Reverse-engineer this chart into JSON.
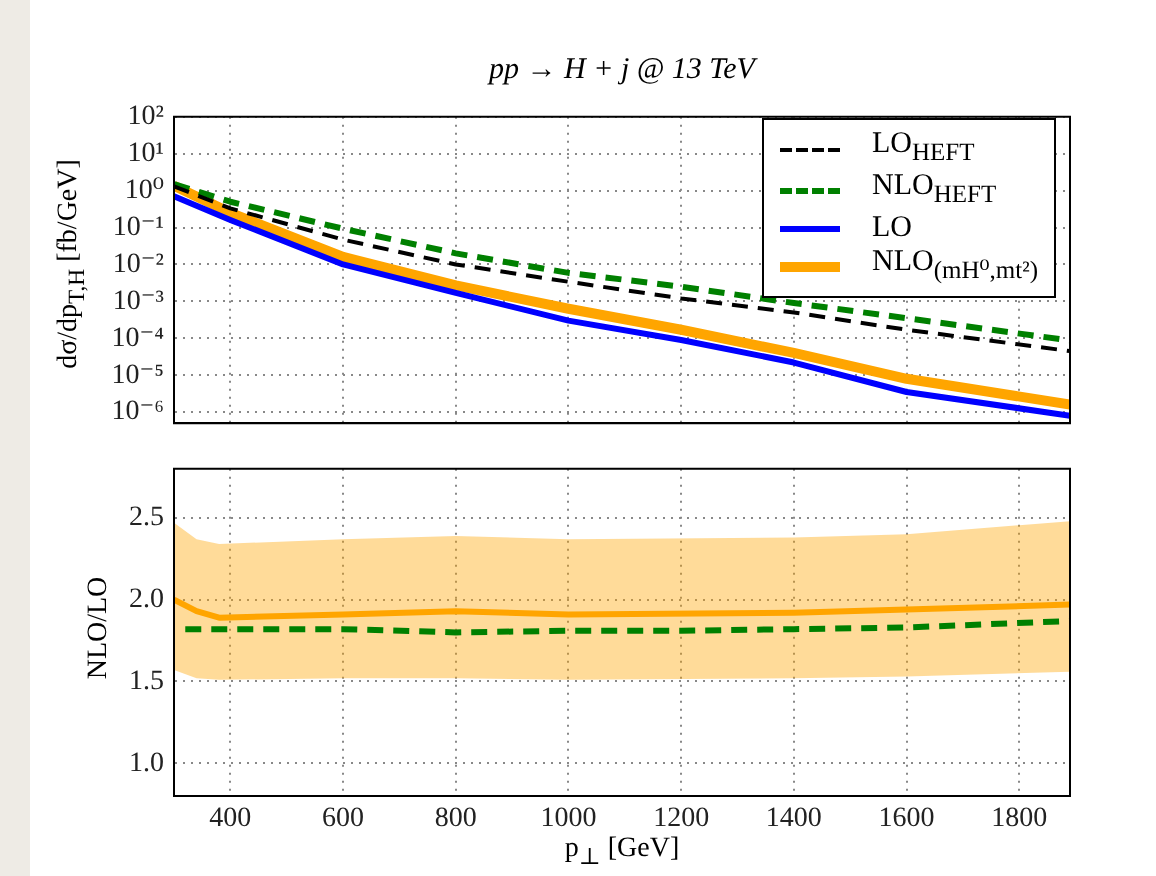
{
  "chart_data": [
    {
      "type": "line",
      "title": "pp → H + j @ 13 TeV",
      "ylabel": "dσ/dp$_{T,H}$ [fb/GeV]",
      "x": [
        300,
        400,
        600,
        800,
        1000,
        1200,
        1400,
        1600,
        1890
      ],
      "series": [
        {
          "name": "LO$_{HEFT}$",
          "color": "#000000",
          "line_style": "dashed",
          "values": [
            1.3,
            0.33,
            0.047,
            0.01,
            0.0034,
            0.0012,
            0.0005,
            0.00017,
            4.5e-05
          ]
        },
        {
          "name": "NLO$_{HEFT}$",
          "color": "#008000",
          "line_style": "dashed",
          "values": [
            1.5,
            0.5,
            0.093,
            0.02,
            0.0059,
            0.0025,
            0.0009,
            0.00035,
            8.7e-05
          ]
        },
        {
          "name": "LO",
          "color": "#0000ff",
          "line_style": "solid",
          "values": [
            0.7,
            0.16,
            0.01,
            0.0017,
            0.0003,
            9e-05,
            2.2e-05,
            3.5e-06,
            8e-07
          ]
        },
        {
          "name": "NLO$_{(mH⁰,mt²)}$",
          "color": "#ffa500",
          "line_style": "solid",
          "values": [
            1.35,
            0.25,
            0.016,
            0.0027,
            0.00063,
            0.00017,
            4e-05,
            8e-06,
            1.6e-06
          ]
        }
      ],
      "xlim": [
        300,
        1890
      ],
      "xticks": [
        400,
        600,
        800,
        1000,
        1200,
        1400,
        1600,
        1800
      ],
      "ylim": [
        5e-07,
        100
      ],
      "log": "y",
      "yticks": [
        {
          "value": 1e-06,
          "label": "10⁻⁶"
        },
        {
          "value": 1e-05,
          "label": "10⁻⁵"
        },
        {
          "value": 0.0001,
          "label": "10⁻⁴"
        },
        {
          "value": 0.001,
          "label": "10⁻³"
        },
        {
          "value": 0.01,
          "label": "10⁻²"
        },
        {
          "value": 0.1,
          "label": "10⁻¹"
        },
        {
          "value": 1,
          "label": "10⁰"
        },
        {
          "value": 10,
          "label": "10¹"
        },
        {
          "value": 100,
          "label": "10²"
        }
      ],
      "grid": true,
      "legend": "top right",
      "tick_labels": "y"
    },
    {
      "type": "line",
      "xlabel": "p$_{⊥}$ [GeV]",
      "ylabel": "NLO/LO",
      "series": [
        {
          "color": "#ffa500",
          "line_style": "solid",
          "x": [
            300,
            340,
            380,
            600,
            800,
            1000,
            1400,
            1600,
            1890
          ],
          "values": [
            2.0,
            1.93,
            1.89,
            1.91,
            1.93,
            1.91,
            1.92,
            1.94,
            1.97
          ],
          "lower": [
            1.57,
            1.52,
            1.51,
            1.52,
            1.52,
            1.51,
            1.52,
            1.53,
            1.56
          ],
          "upper": [
            2.47,
            2.37,
            2.34,
            2.37,
            2.39,
            2.37,
            2.38,
            2.4,
            2.48
          ]
        },
        {
          "color": "#008000",
          "line_style": "dashed",
          "x": [
            320,
            600,
            800,
            1000,
            1200,
            1400,
            1600,
            1890
          ],
          "values": [
            1.82,
            1.82,
            1.8,
            1.81,
            1.81,
            1.82,
            1.83,
            1.87
          ]
        }
      ],
      "xlim": [
        300,
        1890
      ],
      "xticks": [
        400,
        600,
        800,
        1000,
        1200,
        1400,
        1600,
        1800
      ],
      "ylim": [
        0.8,
        2.8
      ],
      "yticks": [
        {
          "value": 1.0,
          "label": "1.0"
        },
        {
          "value": 1.5,
          "label": "1.5"
        },
        {
          "value": 2.0,
          "label": "2.0"
        },
        {
          "value": 2.5,
          "label": "2.5"
        }
      ],
      "grid": true
    }
  ]
}
